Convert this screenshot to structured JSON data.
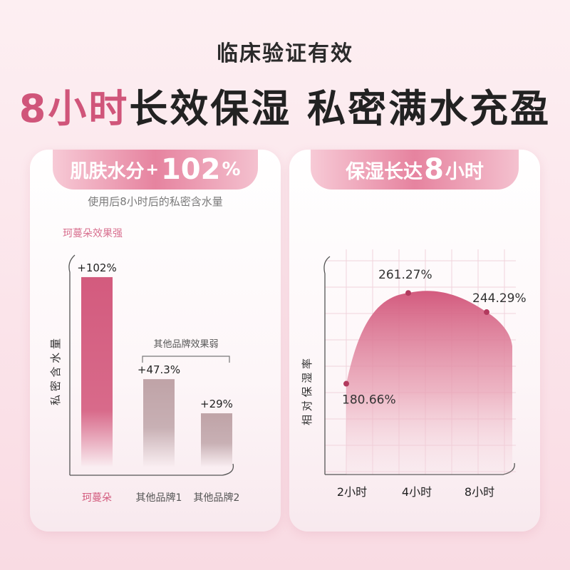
{
  "header": {
    "subtitle": "临床验证有效",
    "headline_accent": "8小时",
    "headline_rest": "长效保湿 私密满水充盈"
  },
  "left_card": {
    "ribbon": {
      "prefix": "肌肤水分",
      "plus": "+",
      "value": "102",
      "unit": "%"
    },
    "note": "使用后8小时后的私密含水量",
    "callout_strong": "珂蔓朵效果强",
    "callout_weak": "其他品牌效果弱",
    "colors": {
      "brand": "#d35b7e",
      "others": "#bfa3a7"
    }
  },
  "right_card": {
    "ribbon": {
      "prefix": "保湿长达",
      "value": "8",
      "unit": "小时"
    },
    "colors": {
      "curve": "#d35b7e",
      "point": "#b23a5e"
    }
  },
  "chart_data": [
    {
      "type": "bar",
      "categories": [
        "珂蔓朵",
        "其他品牌1",
        "其他品牌2"
      ],
      "values": [
        102,
        47.3,
        29
      ],
      "data_labels": [
        "+102%",
        "+47.3%",
        "+29%"
      ],
      "ylabel": "私 密 含 水 量",
      "ylim": [
        0,
        110
      ]
    },
    {
      "type": "area",
      "categories": [
        "2小时",
        "4小时",
        "8小时"
      ],
      "values": [
        180.66,
        261.27,
        244.29
      ],
      "data_labels": [
        "180.66%",
        "261.27%",
        "244.29%"
      ],
      "ylabel": "相 对 保 湿 率",
      "ylim": [
        100,
        300
      ],
      "grid": true
    }
  ]
}
